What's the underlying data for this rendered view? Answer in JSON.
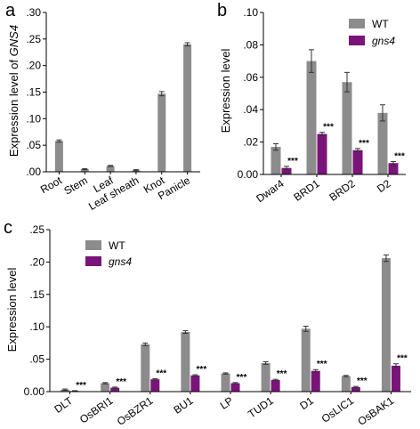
{
  "colors": {
    "wt": "#8c8c8c",
    "gns4": "#7a1479",
    "axis": "#000000",
    "error": "#333333"
  },
  "chart_data": [
    {
      "panel_label": "a",
      "type": "bar",
      "ylabel_prefix": "Expression level of ",
      "ylabel_gene": "GNS4",
      "yticks": [
        ".00",
        ".05",
        ".10",
        ".15",
        ".20",
        ".25",
        ".30"
      ],
      "ylim": [
        0,
        0.3
      ],
      "categories": [
        "Root",
        "Stem",
        "Leaf",
        "Leaf sheath",
        "Knot",
        "Panicle"
      ],
      "series": [
        {
          "values": [
            0.058,
            0.005,
            0.011,
            0.003,
            0.147,
            0.24
          ],
          "errors": [
            0.002,
            0.001,
            0.001,
            0.001,
            0.004,
            0.003
          ]
        }
      ]
    },
    {
      "panel_label": "b",
      "type": "bar",
      "ylabel": "Expression level",
      "yticks": [
        "0.00",
        ".02",
        ".04",
        ".06",
        ".08",
        ".10"
      ],
      "ylim": [
        0,
        0.1
      ],
      "categories": [
        "Dwar4",
        "BRD1",
        "BRD2",
        "D2"
      ],
      "legend": [
        "WT",
        "gns4"
      ],
      "series": [
        {
          "name": "WT",
          "values": [
            0.017,
            0.07,
            0.057,
            0.038
          ],
          "errors": [
            0.002,
            0.007,
            0.006,
            0.005
          ]
        },
        {
          "name": "gns4",
          "values": [
            0.004,
            0.025,
            0.015,
            0.007
          ],
          "errors": [
            0.001,
            0.001,
            0.001,
            0.001
          ],
          "annotations": [
            "***",
            "***",
            "***",
            "***"
          ]
        }
      ]
    },
    {
      "panel_label": "c",
      "type": "bar",
      "ylabel": "Expression level",
      "yticks": [
        "0.00",
        ".05",
        ".10",
        ".15",
        ".20",
        ".25"
      ],
      "ylim": [
        0,
        0.25
      ],
      "categories": [
        "DLT",
        "OsBRI1",
        "OsBZR1",
        "BU1",
        "LP",
        "TUD1",
        "D1",
        "OsLIC1",
        "OsBAK1"
      ],
      "legend": [
        "WT",
        "gns4"
      ],
      "series": [
        {
          "name": "WT",
          "values": [
            0.003,
            0.013,
            0.073,
            0.092,
            0.028,
            0.044,
            0.097,
            0.024,
            0.206
          ],
          "errors": [
            0.001,
            0.001,
            0.002,
            0.002,
            0.001,
            0.002,
            0.004,
            0.001,
            0.005
          ]
        },
        {
          "name": "gns4",
          "values": [
            0.001,
            0.006,
            0.019,
            0.025,
            0.013,
            0.018,
            0.032,
            0.007,
            0.04
          ],
          "errors": [
            0.0005,
            0.001,
            0.001,
            0.001,
            0.001,
            0.001,
            0.002,
            0.001,
            0.003
          ],
          "annotations": [
            "***",
            "***",
            "***",
            "***",
            "***",
            "***",
            "***",
            "***",
            "***"
          ]
        }
      ]
    }
  ]
}
